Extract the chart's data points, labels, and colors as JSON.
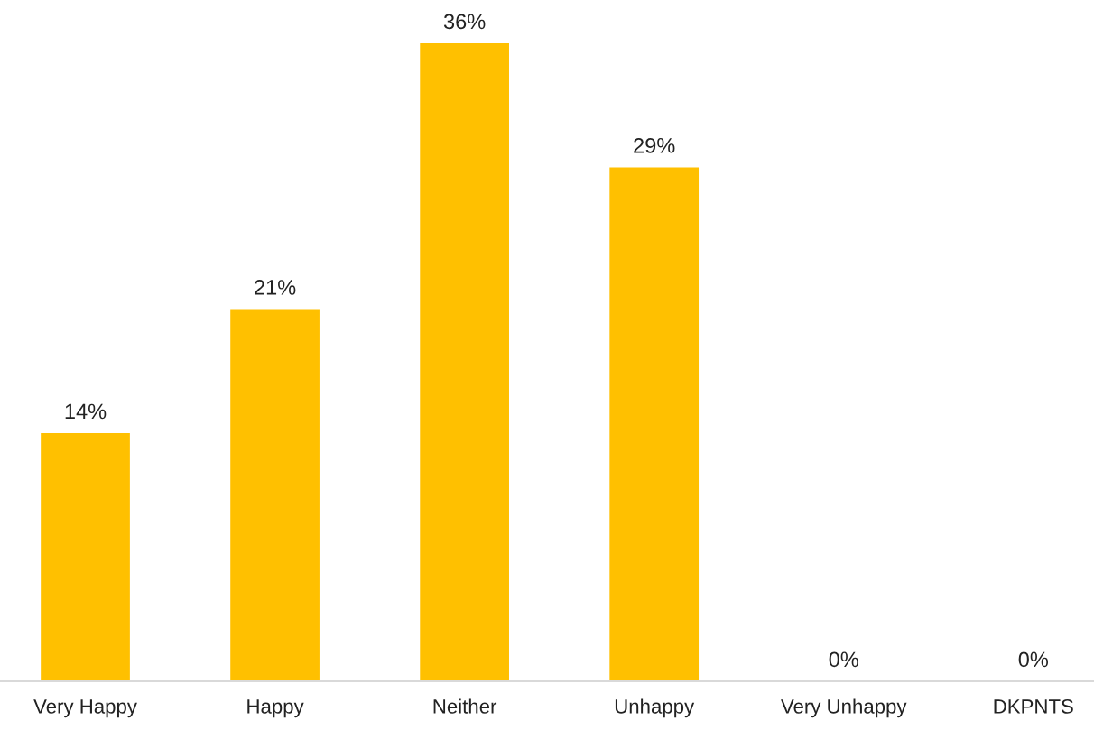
{
  "chart_data": {
    "type": "bar",
    "categories": [
      "Very Happy",
      "Happy",
      "Neither",
      "Unhappy",
      "Very Unhappy",
      "DKPNTS"
    ],
    "values": [
      14,
      21,
      36,
      29,
      0,
      0
    ],
    "value_labels": [
      "14%",
      "21%",
      "36%",
      "29%",
      "0%",
      "0%"
    ],
    "color": "#ffc000",
    "grid": false,
    "legend": false
  }
}
